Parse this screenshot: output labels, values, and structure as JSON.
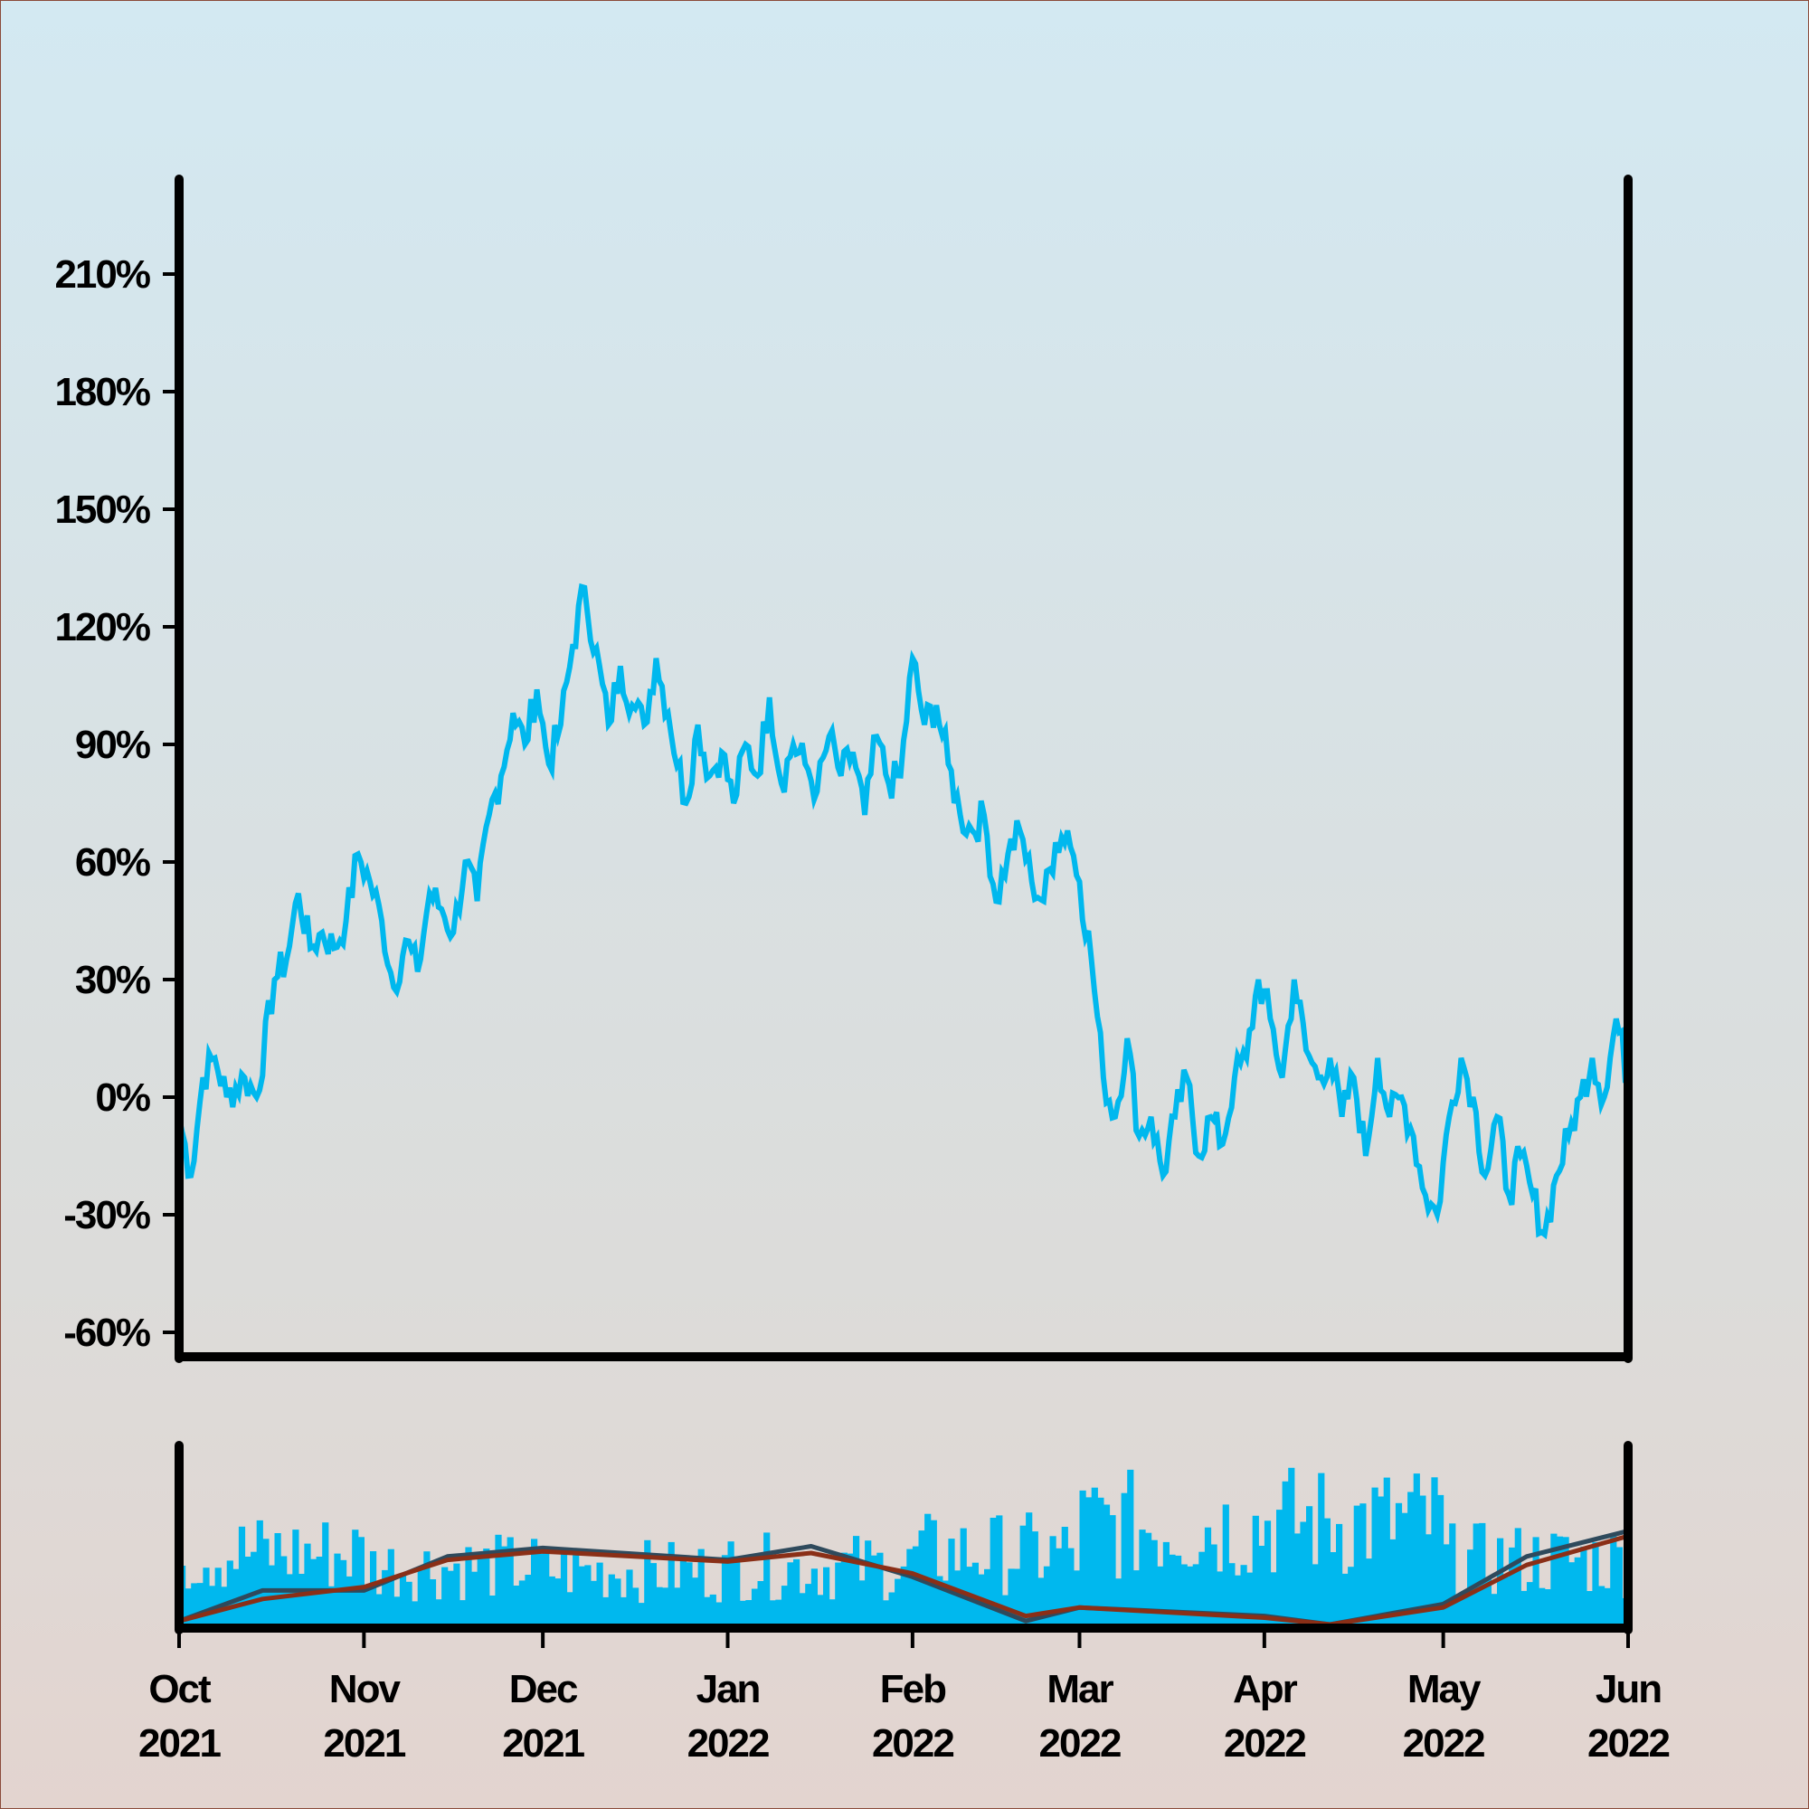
{
  "chart_data": [
    {
      "type": "line",
      "title": "",
      "xlabel": "",
      "ylabel": "",
      "ylim": [
        -60,
        240
      ],
      "yticks": [
        "-60%",
        "-30%",
        "0%",
        "30%",
        "60%",
        "90%",
        "120%",
        "150%",
        "180%",
        "210%"
      ],
      "ytick_values": [
        -60,
        -30,
        0,
        30,
        60,
        90,
        120,
        150,
        180,
        210
      ],
      "xlim": [
        "2021-10-01",
        "2022-06-01"
      ],
      "xticks": [
        {
          "date": "2021-10-01",
          "month": "Oct",
          "year": "2021"
        },
        {
          "date": "2021-11-01",
          "month": "Nov",
          "year": "2021"
        },
        {
          "date": "2021-12-01",
          "month": "Dec",
          "year": "2021"
        },
        {
          "date": "2022-01-01",
          "month": "Jan",
          "year": "2022"
        },
        {
          "date": "2022-02-01",
          "month": "Feb",
          "year": "2022"
        },
        {
          "date": "2022-03-01",
          "month": "Mar",
          "year": "2022"
        },
        {
          "date": "2022-04-01",
          "month": "Apr",
          "year": "2022"
        },
        {
          "date": "2022-05-01",
          "month": "May",
          "year": "2022"
        },
        {
          "date": "2022-06-01",
          "month": "Jun",
          "year": "2022"
        }
      ],
      "grid": false,
      "series": [
        {
          "color": "#00b8ee",
          "points": [
            [
              "2021-10-01",
              -5
            ],
            [
              "2021-10-03",
              -20
            ],
            [
              "2021-10-05",
              5
            ],
            [
              "2021-10-07",
              10
            ],
            [
              "2021-10-09",
              0
            ],
            [
              "2021-10-12",
              5
            ],
            [
              "2021-10-14",
              0
            ],
            [
              "2021-10-17",
              30
            ],
            [
              "2021-10-19",
              35
            ],
            [
              "2021-10-21",
              52
            ],
            [
              "2021-10-23",
              38
            ],
            [
              "2021-10-25",
              42
            ],
            [
              "2021-10-27",
              38
            ],
            [
              "2021-10-29",
              45
            ],
            [
              "2021-10-31",
              62
            ],
            [
              "2021-11-02",
              55
            ],
            [
              "2021-11-04",
              45
            ],
            [
              "2021-11-06",
              28
            ],
            [
              "2021-11-08",
              40
            ],
            [
              "2021-11-10",
              32
            ],
            [
              "2021-11-12",
              52
            ],
            [
              "2021-11-14",
              48
            ],
            [
              "2021-11-16",
              42
            ],
            [
              "2021-11-18",
              60
            ],
            [
              "2021-11-20",
              50
            ],
            [
              "2021-11-22",
              72
            ],
            [
              "2021-11-24",
              82
            ],
            [
              "2021-11-26",
              98
            ],
            [
              "2021-11-28",
              90
            ],
            [
              "2021-11-30",
              104
            ],
            [
              "2021-12-02",
              85
            ],
            [
              "2021-12-04",
              95
            ],
            [
              "2021-12-06",
              115
            ],
            [
              "2021-12-08",
              130
            ],
            [
              "2021-12-12",
              95
            ],
            [
              "2021-12-14",
              110
            ],
            [
              "2021-12-16",
              100
            ],
            [
              "2021-12-18",
              95
            ],
            [
              "2021-12-20",
              112
            ],
            [
              "2021-12-22",
              98
            ],
            [
              "2021-12-25",
              75
            ],
            [
              "2021-12-27",
              95
            ],
            [
              "2021-12-29",
              82
            ],
            [
              "2021-12-31",
              88
            ],
            [
              "2022-01-02",
              75
            ],
            [
              "2022-01-04",
              90
            ],
            [
              "2022-01-06",
              82
            ],
            [
              "2022-01-08",
              102
            ],
            [
              "2022-01-10",
              80
            ],
            [
              "2022-01-12",
              90
            ],
            [
              "2022-01-14",
              85
            ],
            [
              "2022-01-16",
              78
            ],
            [
              "2022-01-18",
              92
            ],
            [
              "2022-01-20",
              82
            ],
            [
              "2022-01-22",
              88
            ],
            [
              "2022-01-24",
              72
            ],
            [
              "2022-01-26",
              92
            ],
            [
              "2022-01-28",
              80
            ],
            [
              "2022-01-30",
              82
            ],
            [
              "2022-02-01",
              112
            ],
            [
              "2022-02-03",
              95
            ],
            [
              "2022-02-05",
              100
            ],
            [
              "2022-02-07",
              85
            ],
            [
              "2022-02-09",
              72
            ],
            [
              "2022-02-11",
              68
            ],
            [
              "2022-02-13",
              72
            ],
            [
              "2022-02-15",
              50
            ],
            [
              "2022-02-17",
              62
            ],
            [
              "2022-02-19",
              68
            ],
            [
              "2022-02-21",
              55
            ],
            [
              "2022-02-23",
              50
            ],
            [
              "2022-02-25",
              65
            ],
            [
              "2022-02-27",
              68
            ],
            [
              "2022-03-01",
              55
            ],
            [
              "2022-03-03",
              35
            ],
            [
              "2022-03-05",
              5
            ],
            [
              "2022-03-07",
              -5
            ],
            [
              "2022-03-09",
              15
            ],
            [
              "2022-03-11",
              -10
            ],
            [
              "2022-03-13",
              -5
            ],
            [
              "2022-03-15",
              -20
            ],
            [
              "2022-03-17",
              -5
            ],
            [
              "2022-03-19",
              5
            ],
            [
              "2022-03-21",
              -15
            ],
            [
              "2022-03-23",
              -5
            ],
            [
              "2022-03-25",
              -12
            ],
            [
              "2022-03-27",
              5
            ],
            [
              "2022-03-29",
              10
            ],
            [
              "2022-03-31",
              30
            ],
            [
              "2022-04-02",
              20
            ],
            [
              "2022-04-04",
              5
            ],
            [
              "2022-04-06",
              30
            ],
            [
              "2022-04-08",
              12
            ],
            [
              "2022-04-10",
              5
            ],
            [
              "2022-04-12",
              10
            ],
            [
              "2022-04-14",
              -5
            ],
            [
              "2022-04-16",
              5
            ],
            [
              "2022-04-18",
              -15
            ],
            [
              "2022-04-20",
              10
            ],
            [
              "2022-04-22",
              -5
            ],
            [
              "2022-04-24",
              0
            ],
            [
              "2022-04-26",
              -10
            ],
            [
              "2022-04-28",
              -25
            ],
            [
              "2022-04-30",
              -30
            ],
            [
              "2022-05-02",
              -5
            ],
            [
              "2022-05-04",
              10
            ],
            [
              "2022-05-06",
              0
            ],
            [
              "2022-05-08",
              -20
            ],
            [
              "2022-05-10",
              -5
            ],
            [
              "2022-05-12",
              -25
            ],
            [
              "2022-05-14",
              -15
            ],
            [
              "2022-05-16",
              -25
            ],
            [
              "2022-05-18",
              -35
            ],
            [
              "2022-05-20",
              -20
            ],
            [
              "2022-05-22",
              -10
            ],
            [
              "2022-05-24",
              0
            ],
            [
              "2022-05-26",
              10
            ],
            [
              "2022-05-28",
              0
            ],
            [
              "2022-05-30",
              20
            ],
            [
              "2022-06-01",
              5
            ]
          ]
        }
      ]
    },
    {
      "type": "bar",
      "title": "",
      "xlabel": "",
      "ylabel": "",
      "series": [
        {
          "color": "#00b8ee",
          "description_values": "daily bars, heights relative 0-1",
          "values_by_segment": [
            {
              "from": "2021-10-01",
              "to": "2021-11-01",
              "level": 0.55
            },
            {
              "from": "2021-11-01",
              "to": "2021-12-01",
              "level": 0.45
            },
            {
              "from": "2021-12-01",
              "to": "2022-01-01",
              "level": 0.42
            },
            {
              "from": "2022-01-01",
              "to": "2022-02-01",
              "level": 0.45
            },
            {
              "from": "2022-02-01",
              "to": "2022-03-01",
              "level": 0.55
            },
            {
              "from": "2022-03-01",
              "to": "2022-04-01",
              "level": 0.75
            },
            {
              "from": "2022-04-01",
              "to": "2022-05-01",
              "level": 0.78
            },
            {
              "from": "2022-05-01",
              "to": "2022-06-01",
              "level": 0.5
            }
          ]
        },
        {
          "color": "#2f4a5c",
          "points": [
            [
              "2021-10-01",
              0.02
            ],
            [
              "2021-10-15",
              0.2
            ],
            [
              "2021-11-01",
              0.2
            ],
            [
              "2021-11-15",
              0.4
            ],
            [
              "2021-12-01",
              0.45
            ],
            [
              "2022-01-01",
              0.38
            ],
            [
              "2022-01-15",
              0.46
            ],
            [
              "2022-02-01",
              0.28
            ],
            [
              "2022-02-20",
              0.02
            ],
            [
              "2022-03-01",
              0.1
            ],
            [
              "2022-04-01",
              0.05
            ],
            [
              "2022-04-12",
              0.0
            ],
            [
              "2022-05-01",
              0.12
            ],
            [
              "2022-05-15",
              0.4
            ],
            [
              "2022-06-01",
              0.55
            ]
          ]
        },
        {
          "color": "#8a2f17",
          "points": [
            [
              "2021-10-01",
              0.02
            ],
            [
              "2021-10-15",
              0.15
            ],
            [
              "2021-11-01",
              0.22
            ],
            [
              "2021-11-15",
              0.38
            ],
            [
              "2021-12-01",
              0.43
            ],
            [
              "2022-01-01",
              0.37
            ],
            [
              "2022-01-15",
              0.42
            ],
            [
              "2022-02-01",
              0.3
            ],
            [
              "2022-02-20",
              0.05
            ],
            [
              "2022-03-01",
              0.1
            ],
            [
              "2022-04-01",
              0.04
            ],
            [
              "2022-04-12",
              0.0
            ],
            [
              "2022-05-01",
              0.1
            ],
            [
              "2022-05-15",
              0.35
            ],
            [
              "2022-06-01",
              0.52
            ]
          ]
        }
      ]
    }
  ]
}
